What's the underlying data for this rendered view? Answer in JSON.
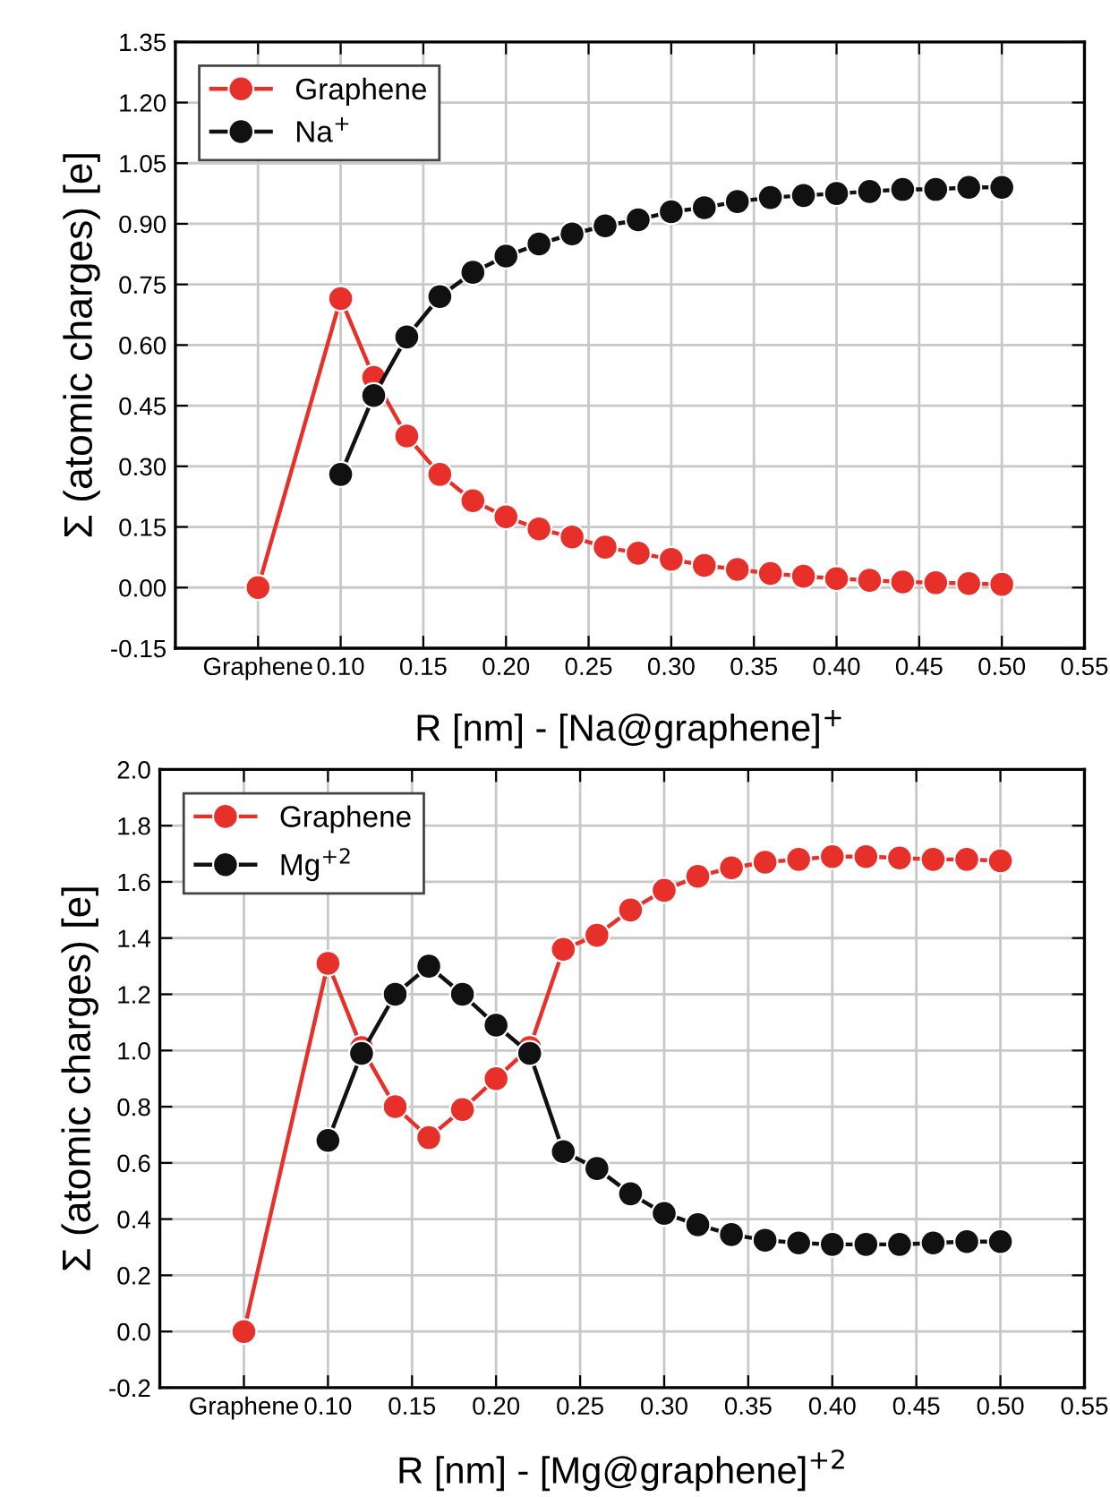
{
  "chart_data": [
    {
      "type": "line",
      "xlabel": "R [nm] - [Na@graphene]$^{+}$",
      "ylabel": "Σ (atomic charges) [e]",
      "grid": true,
      "legend": "top left",
      "marker": "circle",
      "line_style": "solid",
      "xlim": [
        0,
        0.55
      ],
      "xticks": [
        {
          "value": 0.05,
          "label": "Graphene"
        },
        {
          "value": 0.1,
          "label": "0.10"
        },
        {
          "value": 0.15,
          "label": "0.15"
        },
        {
          "value": 0.2,
          "label": "0.20"
        },
        {
          "value": 0.25,
          "label": "0.25"
        },
        {
          "value": 0.3,
          "label": "0.30"
        },
        {
          "value": 0.35,
          "label": "0.35"
        },
        {
          "value": 0.4,
          "label": "0.40"
        },
        {
          "value": 0.45,
          "label": "0.45"
        },
        {
          "value": 0.5,
          "label": "0.50"
        },
        {
          "value": 0.55,
          "label": "0.55"
        }
      ],
      "ylim": [
        -0.15,
        1.35
      ],
      "yticks": [
        {
          "value": -0.15,
          "label": "-0.15"
        },
        {
          "value": 0,
          "label": "0.00"
        },
        {
          "value": 0.15,
          "label": "0.15"
        },
        {
          "value": 0.3,
          "label": "0.30"
        },
        {
          "value": 0.45,
          "label": "0.45"
        },
        {
          "value": 0.6,
          "label": "0.60"
        },
        {
          "value": 0.75,
          "label": "0.75"
        },
        {
          "value": 0.9,
          "label": "0.90"
        },
        {
          "value": 1.05,
          "label": "1.05"
        },
        {
          "value": 1.2,
          "label": "1.20"
        },
        {
          "value": 1.35,
          "label": "1.35"
        }
      ],
      "series": [
        {
          "name": "Graphene",
          "color": "#e8302a",
          "x": [
            0.05,
            0.1,
            0.12,
            0.14,
            0.16,
            0.18,
            0.2,
            0.22,
            0.24,
            0.26,
            0.28,
            0.3,
            0.32,
            0.34,
            0.36,
            0.38,
            0.4,
            0.42,
            0.44,
            0.46,
            0.48,
            0.5
          ],
          "values": [
            0,
            0.715,
            0.52,
            0.375,
            0.28,
            0.215,
            0.175,
            0.145,
            0.125,
            0.1,
            0.085,
            0.07,
            0.055,
            0.045,
            0.035,
            0.028,
            0.022,
            0.018,
            0.014,
            0.012,
            0.01,
            0.008
          ]
        },
        {
          "name": "Na$^{+}$",
          "color": "#111111",
          "x": [
            0.1,
            0.12,
            0.14,
            0.16,
            0.18,
            0.2,
            0.22,
            0.24,
            0.26,
            0.28,
            0.3,
            0.32,
            0.34,
            0.36,
            0.38,
            0.4,
            0.42,
            0.44,
            0.46,
            0.48,
            0.5
          ],
          "values": [
            0.28,
            0.475,
            0.62,
            0.72,
            0.78,
            0.82,
            0.85,
            0.875,
            0.895,
            0.91,
            0.93,
            0.94,
            0.955,
            0.965,
            0.97,
            0.975,
            0.98,
            0.985,
            0.985,
            0.99,
            0.99
          ]
        }
      ]
    },
    {
      "type": "line",
      "xlabel": "R [nm] - [Mg@graphene]$^{+2}$",
      "ylabel": "Σ (atomic charges) [e]",
      "grid": true,
      "legend": "top left",
      "marker": "circle",
      "line_style": "solid",
      "xlim": [
        0,
        0.55
      ],
      "xticks": [
        {
          "value": 0.05,
          "label": "Graphene"
        },
        {
          "value": 0.1,
          "label": "0.10"
        },
        {
          "value": 0.15,
          "label": "0.15"
        },
        {
          "value": 0.2,
          "label": "0.20"
        },
        {
          "value": 0.25,
          "label": "0.25"
        },
        {
          "value": 0.3,
          "label": "0.30"
        },
        {
          "value": 0.35,
          "label": "0.35"
        },
        {
          "value": 0.4,
          "label": "0.40"
        },
        {
          "value": 0.45,
          "label": "0.45"
        },
        {
          "value": 0.5,
          "label": "0.50"
        },
        {
          "value": 0.55,
          "label": "0.55"
        }
      ],
      "ylim": [
        -0.2,
        2.0
      ],
      "yticks": [
        {
          "value": -0.2,
          "label": "-0.2"
        },
        {
          "value": 0,
          "label": "0.0"
        },
        {
          "value": 0.2,
          "label": "0.2"
        },
        {
          "value": 0.4,
          "label": "0.4"
        },
        {
          "value": 0.6,
          "label": "0.6"
        },
        {
          "value": 0.8,
          "label": "0.8"
        },
        {
          "value": 1.0,
          "label": "1.0"
        },
        {
          "value": 1.2,
          "label": "1.2"
        },
        {
          "value": 1.4,
          "label": "1.4"
        },
        {
          "value": 1.6,
          "label": "1.6"
        },
        {
          "value": 1.8,
          "label": "1.8"
        },
        {
          "value": 2.0,
          "label": "2.0"
        }
      ],
      "series": [
        {
          "name": "Graphene",
          "color": "#e8302a",
          "x": [
            0.05,
            0.1,
            0.12,
            0.14,
            0.16,
            0.18,
            0.2,
            0.22,
            0.24,
            0.26,
            0.28,
            0.3,
            0.32,
            0.34,
            0.36,
            0.38,
            0.4,
            0.42,
            0.44,
            0.46,
            0.48,
            0.5
          ],
          "values": [
            0,
            1.31,
            1.01,
            0.8,
            0.69,
            0.79,
            0.9,
            1.01,
            1.36,
            1.41,
            1.5,
            1.57,
            1.62,
            1.65,
            1.67,
            1.68,
            1.69,
            1.69,
            1.685,
            1.68,
            1.68,
            1.675
          ]
        },
        {
          "name": "Mg$^{+2}$",
          "color": "#111111",
          "x": [
            0.1,
            0.12,
            0.14,
            0.16,
            0.18,
            0.2,
            0.22,
            0.24,
            0.26,
            0.28,
            0.3,
            0.32,
            0.34,
            0.36,
            0.38,
            0.4,
            0.42,
            0.44,
            0.46,
            0.48,
            0.5
          ],
          "values": [
            0.68,
            0.99,
            1.2,
            1.3,
            1.2,
            1.09,
            0.99,
            0.64,
            0.58,
            0.49,
            0.42,
            0.38,
            0.345,
            0.325,
            0.315,
            0.31,
            0.31,
            0.31,
            0.315,
            0.32,
            0.32
          ]
        }
      ]
    }
  ]
}
